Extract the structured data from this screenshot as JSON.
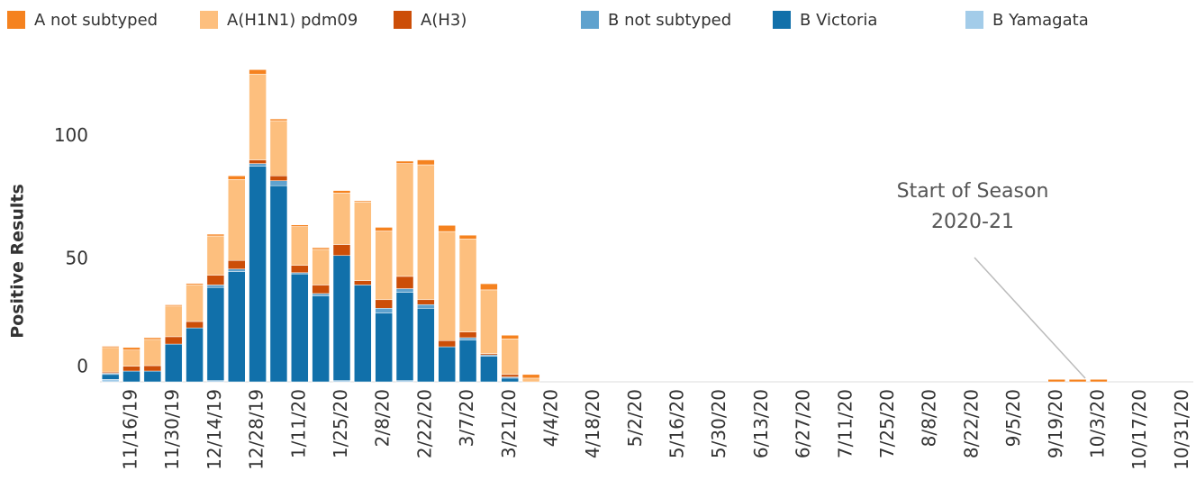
{
  "chart_data": {
    "type": "stacked_bar",
    "y_label": "Positive Results",
    "annotation": [
      "Start of Season",
      "2020-21"
    ],
    "categories": [
      null,
      "11/16/19",
      null,
      "11/30/19",
      null,
      "12/14/19",
      null,
      "12/28/19",
      null,
      "1/11/20",
      null,
      "1/25/20",
      null,
      "2/8/20",
      null,
      "2/22/20",
      null,
      "3/7/20",
      null,
      "3/21/20",
      null,
      "4/4/20",
      null,
      "4/18/20",
      null,
      "5/2/20",
      null,
      "5/16/20",
      null,
      "5/30/20",
      null,
      "6/13/20",
      null,
      "6/27/20",
      null,
      "7/11/20",
      null,
      "7/25/20",
      null,
      "8/8/20",
      null,
      "8/22/20",
      null,
      "9/5/20",
      null,
      "9/19/20",
      null,
      "10/3/20",
      null,
      "10/17/20",
      null,
      "10/31/20"
    ],
    "series": [
      {
        "name": "A not subtyped",
        "color": "#f5821f",
        "values": [
          0.5,
          1,
          0.7,
          0.5,
          0.5,
          0.7,
          1.5,
          1.8,
          0.7,
          0.7,
          0.7,
          1,
          0.5,
          1.5,
          1,
          2,
          2.5,
          1.5,
          2.5,
          1.5,
          1.5,
          0,
          0,
          0,
          0,
          0,
          0,
          0,
          0,
          0,
          0,
          0,
          0,
          0,
          0,
          0,
          0,
          0,
          0,
          0,
          0,
          0,
          0,
          0,
          0,
          1,
          1,
          1,
          0,
          0,
          0,
          0
        ]
      },
      {
        "name": "A(H1N1) pdm09",
        "color": "#fdbf7e",
        "values": [
          10,
          6.6,
          10.7,
          12.5,
          15,
          16,
          33,
          35,
          22.5,
          15.8,
          14.5,
          21,
          32,
          28,
          46,
          55,
          44.5,
          38,
          26,
          14.5,
          1.5,
          0,
          0,
          0,
          0,
          0,
          0,
          0,
          0,
          0,
          0,
          0,
          0,
          0,
          0,
          0,
          0,
          0,
          0,
          0,
          0,
          0,
          0,
          0,
          0,
          0,
          0,
          0,
          0,
          0,
          0,
          0
        ]
      },
      {
        "name": "A(H3)",
        "color": "#cc4e08",
        "values": [
          0.5,
          2,
          2.2,
          3,
          2.6,
          4,
          3.5,
          1.5,
          2,
          3,
          3.5,
          4.5,
          1.8,
          3.5,
          5,
          2,
          2.5,
          2.3,
          0.5,
          1,
          0,
          0,
          0,
          0,
          0,
          0,
          0,
          0,
          0,
          0,
          0,
          0,
          0,
          0,
          0,
          0,
          0,
          0,
          0,
          0,
          0,
          0,
          0,
          0,
          0,
          0,
          0,
          0,
          0,
          0,
          0,
          0
        ]
      },
      {
        "name": "B not subtyped",
        "color": "#5fa2ce",
        "values": [
          0.5,
          0,
          0,
          0,
          0,
          1,
          1,
          1,
          2,
          0.5,
          1,
          0,
          0,
          2,
          1.5,
          1.5,
          0,
          1,
          0.5,
          0.5,
          0,
          0,
          0,
          0,
          0,
          0,
          0,
          0,
          0,
          0,
          0,
          0,
          0,
          0,
          0,
          0,
          0,
          0,
          0,
          0,
          0,
          0,
          0,
          0,
          0,
          0,
          0,
          0,
          0,
          0,
          0,
          0
        ]
      },
      {
        "name": "B Victoria",
        "color": "#1170aa",
        "values": [
          2,
          4.4,
          4.4,
          15.4,
          22,
          38,
          45,
          88,
          80,
          44,
          35,
          51,
          39.5,
          28,
          36,
          30,
          14.3,
          17,
          10.5,
          1.5,
          0,
          0,
          0,
          0,
          0,
          0,
          0,
          0,
          0,
          0,
          0,
          0,
          0,
          0,
          0,
          0,
          0,
          0,
          0,
          0,
          0,
          0,
          0,
          0,
          0,
          0,
          0,
          0,
          0,
          0,
          0,
          0
        ]
      },
      {
        "name": "B Yamagata",
        "color": "#a3cce9",
        "values": [
          1,
          0,
          0,
          0,
          0,
          0.5,
          0,
          0,
          0,
          0,
          0,
          0.5,
          0,
          0,
          0.5,
          0,
          0,
          0,
          0,
          0,
          0,
          0,
          0,
          0,
          0,
          0,
          0,
          0,
          0,
          0,
          0,
          0,
          0,
          0,
          0,
          0,
          0,
          0,
          0,
          0,
          0,
          0,
          0,
          0,
          0,
          0,
          0,
          0,
          0,
          0,
          0,
          0
        ]
      }
    ],
    "ylim": [
      0,
      130
    ],
    "yticks": [
      0,
      50,
      100
    ]
  }
}
